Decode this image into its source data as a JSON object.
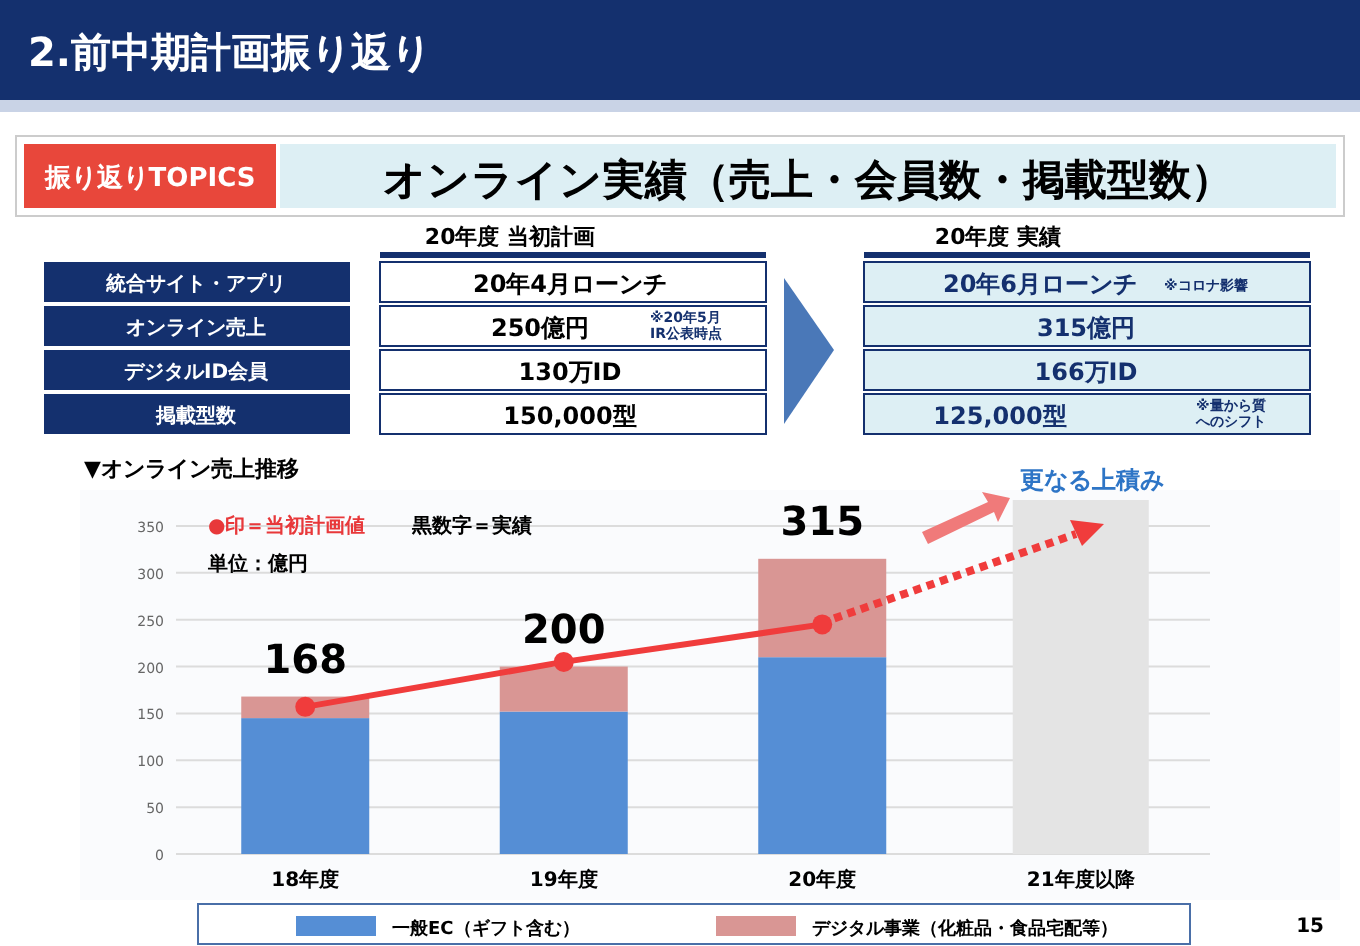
{
  "chart_data": {
    "type": "bar",
    "title": "2.前中期計画振り返り",
    "subtitle": "オンライン実績（売上・会員数・掲載型数）",
    "categories": [
      "18年度",
      "19年度",
      "20年度",
      "21年度以降"
    ],
    "stacked": true,
    "series": [
      {
        "name": "一般EC（ギフト含む）",
        "color": "#558ed5",
        "values": [
          145,
          152,
          210,
          null
        ]
      },
      {
        "name": "デジタル事業（化粧品・食品宅配等）",
        "color": "#d99694",
        "values": [
          23,
          48,
          105,
          null
        ]
      },
      {
        "type": "line",
        "color": "#f03c3c",
        "marker": "circle",
        "values": [
          157,
          205,
          245,
          null
        ]
      }
    ],
    "bands": [
      {
        "axis": "x",
        "from": "21年度以降",
        "to": "21年度以降",
        "color": "#e4e4e4"
      }
    ],
    "totals": [
      "168",
      "200",
      "315",
      null
    ],
    "ylim": [
      0,
      350
    ],
    "yticks": [
      0,
      50,
      100,
      150,
      200,
      250,
      300,
      350
    ],
    "grid": "y",
    "legend": "bottom",
    "annotations": [
      "振り返りTOPICS",
      "20年度 当初計画",
      "20年度 実績",
      "統合サイト・アプリ",
      "オンライン売上",
      "デジタルID会員",
      "掲載型数",
      "20年4月ローンチ",
      "250億円",
      "※20年5月IR公表時点",
      "130万ID",
      "150,000型",
      "20年6月ローンチ",
      "※コロナ影響",
      "315億円",
      "166万ID",
      "125,000型",
      "※量から質へのシフト",
      "▼オンライン売上推移",
      "●印＝当初計画値",
      "黒数字＝実績",
      "単位：億円",
      "更なる上積み",
      "15"
    ]
  }
}
